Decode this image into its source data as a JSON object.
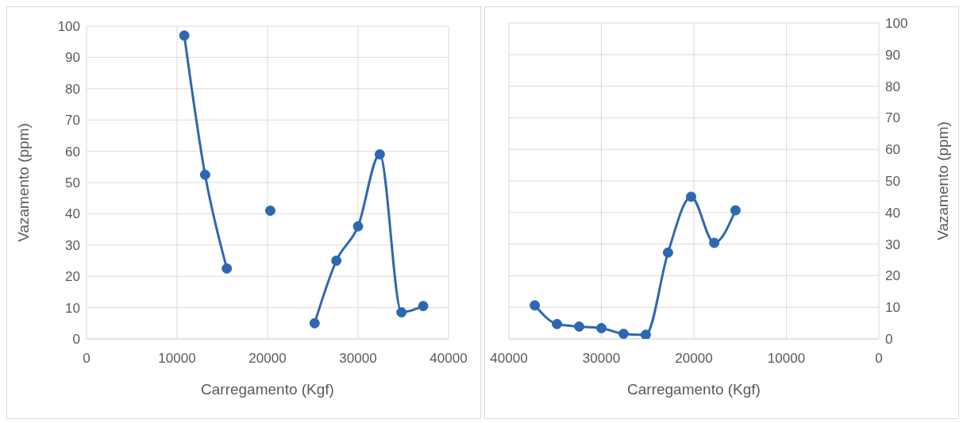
{
  "chart_data": [
    {
      "type": "line",
      "xlabel": "Carregamento (Kgf)",
      "ylabel": "Vazamento (ppm)",
      "x": [
        10800,
        13100,
        15500,
        17800,
        20300,
        22800,
        25200,
        27600,
        30000,
        32400,
        34800,
        37200
      ],
      "series": [
        {
          "color": "#2e67b1",
          "values": [
            97,
            52.5,
            22.5,
            null,
            41,
            null,
            5,
            25,
            36,
            59,
            8.5,
            10.5
          ]
        }
      ],
      "xlim": [
        0,
        40000
      ],
      "xticks": [
        0,
        10000,
        20000,
        30000,
        40000
      ],
      "ylim": [
        0,
        100
      ],
      "yticks": [
        0,
        10,
        20,
        30,
        40,
        50,
        60,
        70,
        80,
        90,
        100
      ],
      "grid": true,
      "marker": "circle",
      "line_style": "solid"
    },
    {
      "type": "line",
      "xlabel": "Carregamento (Kgf)",
      "ylabel": "Vazamento (ppm)",
      "x": [
        37200,
        34800,
        32400,
        30000,
        27600,
        25200,
        22800,
        20300,
        17800,
        15500
      ],
      "series": [
        {
          "color": "#2e67b1",
          "values": [
            10.6,
            4.7,
            3.9,
            3.4,
            1.6,
            1.3,
            27.3,
            45,
            30.4,
            40.7
          ]
        }
      ],
      "xlim": [
        40000,
        0
      ],
      "xticks": [
        40000,
        30000,
        20000,
        10000,
        0
      ],
      "ylim": [
        0,
        100
      ],
      "yticks": [
        0,
        10,
        20,
        30,
        40,
        50,
        60,
        70,
        80,
        90,
        100
      ],
      "grid": true,
      "marker": "circle",
      "line_style": "solid"
    }
  ]
}
